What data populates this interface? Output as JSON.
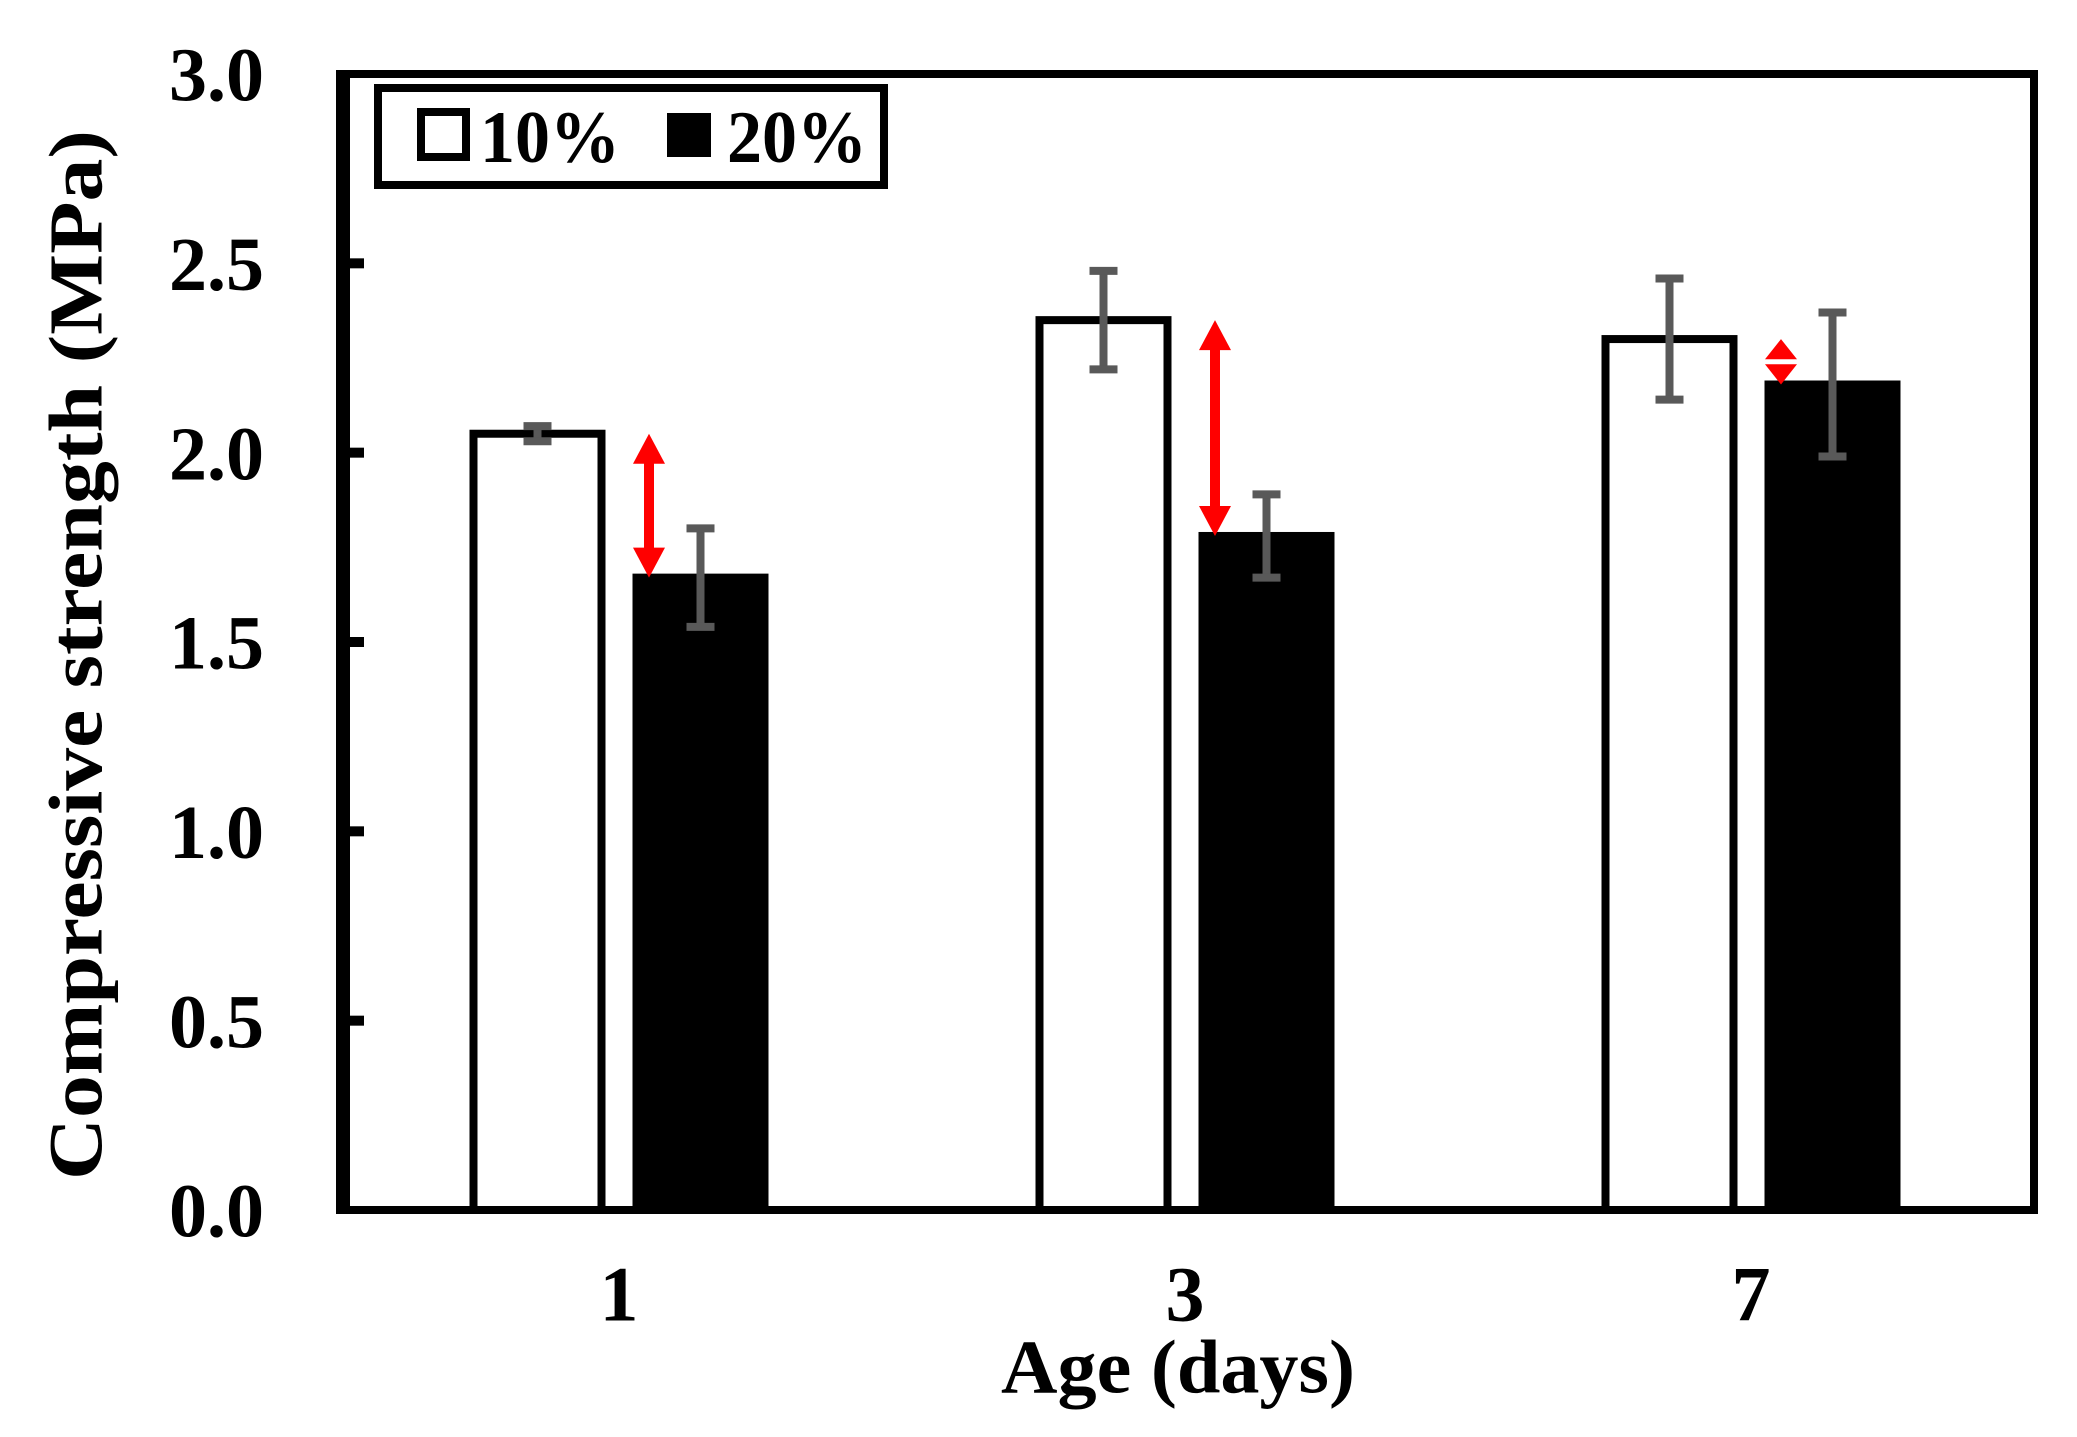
{
  "figure": {
    "background": "#ffffff"
  },
  "chart_data": {
    "type": "bar",
    "title": "",
    "xlabel": "Age (days)",
    "ylabel": "Compressive strength (MPa)",
    "categories": [
      "1",
      "3",
      "7"
    ],
    "series": [
      {
        "name": "10%",
        "fill": "#ffffff",
        "values": [
          2.05,
          2.35,
          2.3
        ],
        "errors": [
          0.02,
          0.13,
          0.16
        ]
      },
      {
        "name": "20%",
        "fill": "#000000",
        "values": [
          1.67,
          1.78,
          2.18
        ],
        "errors": [
          0.13,
          0.11,
          0.19
        ]
      }
    ],
    "ylim": [
      0.0,
      3.0
    ],
    "ytick_step": 0.5,
    "ytick_labels": [
      "0.0",
      "0.5",
      "1.0",
      "1.5",
      "2.0",
      "2.5",
      "3.0"
    ],
    "grid": false,
    "legend_position": "top-left-inside",
    "annotations": [
      {
        "type": "double-arrow",
        "group": 0,
        "from_series": "10%",
        "to_series": "20%",
        "meaning": "difference between 10% and 20% bars"
      },
      {
        "type": "double-arrow",
        "group": 1,
        "from_series": "10%",
        "to_series": "20%",
        "meaning": "difference between 10% and 20% bars"
      },
      {
        "type": "double-arrow",
        "group": 2,
        "from_series": "10%",
        "to_series": "20%",
        "meaning": "difference between 10% and 20% bars"
      }
    ],
    "colors": {
      "frame": "#000000",
      "bar_outline": "#000000",
      "error_bar": "#595959",
      "arrow": "#ff0000",
      "text": "#000000"
    }
  }
}
